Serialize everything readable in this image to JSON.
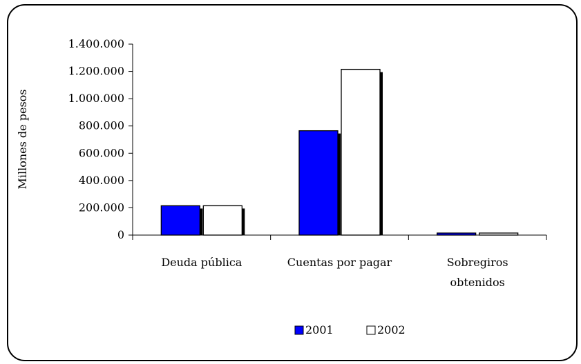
{
  "chart_data": {
    "type": "bar",
    "title": "",
    "xlabel": "",
    "ylabel": "Millones de pesos",
    "categories": [
      "Deuda pública",
      "Cuentas por pagar",
      "Sobregiros obtenidos"
    ],
    "category_lines": [
      [
        "Deuda pública"
      ],
      [
        "Cuentas por pagar"
      ],
      [
        "Sobregiros",
        "obtenidos"
      ]
    ],
    "series": [
      {
        "name": "2001",
        "color": "#0000ff",
        "values": [
          215000,
          765000,
          15000
        ]
      },
      {
        "name": "2002",
        "color": "#ffffff",
        "values": [
          215000,
          1215000,
          15000
        ]
      }
    ],
    "ylim": [
      0,
      1400000
    ],
    "yticks": [
      0,
      200000,
      400000,
      600000,
      800000,
      1000000,
      1200000,
      1400000
    ],
    "ytick_labels": [
      "0",
      "200.000",
      "400.000",
      "600.000",
      "800.000",
      "1.000.000",
      "1.200.000",
      "1.400.000"
    ],
    "grid": false,
    "legend_position": "bottom"
  }
}
